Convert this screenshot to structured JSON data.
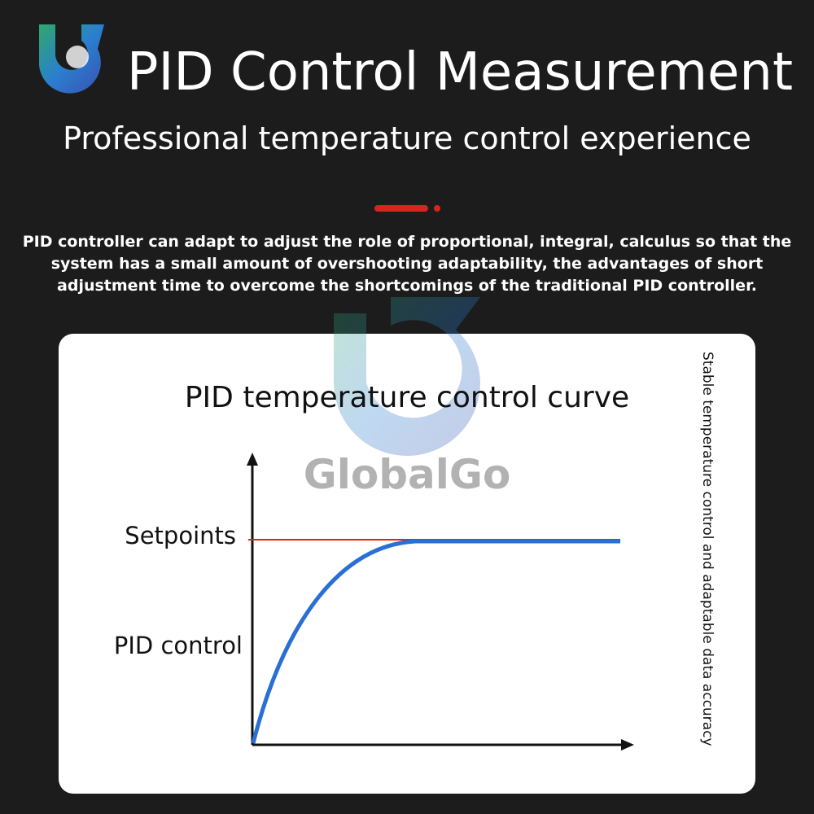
{
  "header": {
    "title": "PID Control Measurement",
    "subtitle": "Professional temperature control experience"
  },
  "intro": {
    "lines": [
      "PID controller can adapt to adjust the role of proportional, integral, calculus so that the",
      "system has a small amount of overshooting adaptability, the advantages of short",
      "adjustment time to overcome the shortcomings of the traditional PID controller."
    ]
  },
  "diagram": {
    "title": "PID temperature control curve",
    "setpoint_label": "Setpoints",
    "curve_label": "PID control",
    "side_note": "Stable temperature control and adaptable data accuracy"
  },
  "watermark": "GlobalGo"
}
